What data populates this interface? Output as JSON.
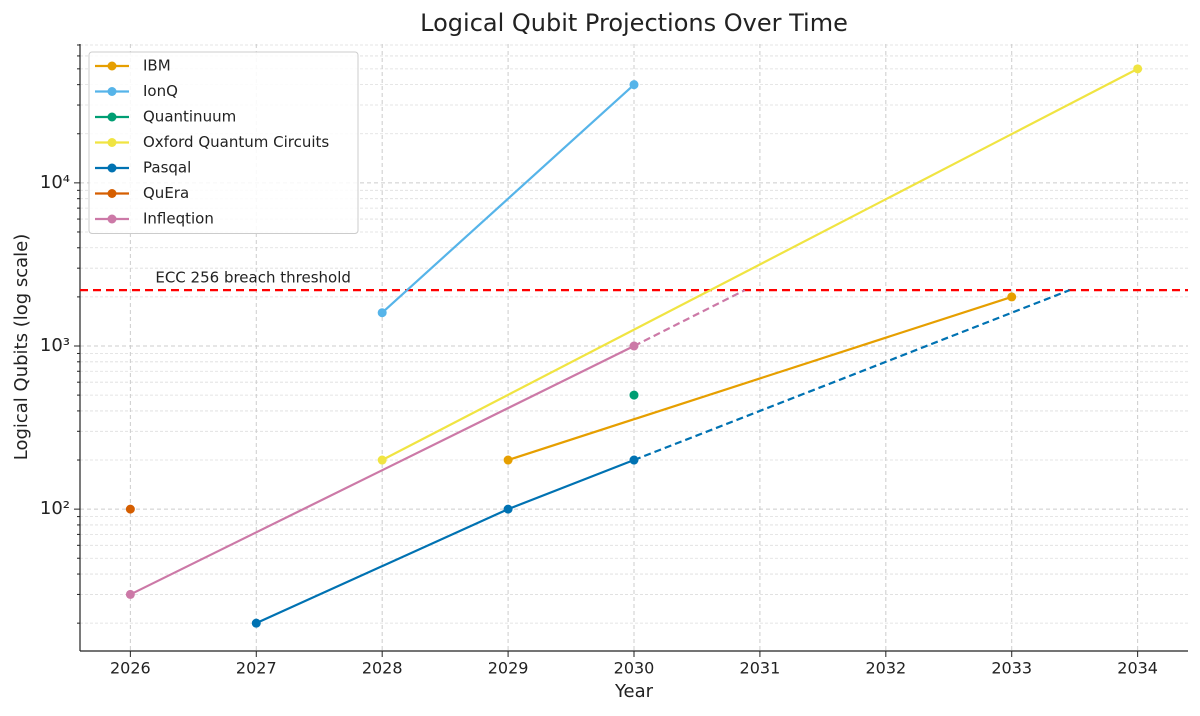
{
  "chart_data": {
    "type": "line",
    "title": "Logical Qubit Projections Over Time",
    "x_label": "Year",
    "y_label": "Logical Qubits (log scale)",
    "log_y": true,
    "grid": true,
    "minor_grid": true,
    "legend": "upper left",
    "xlim": [
      2025.6,
      2034.4
    ],
    "xticks": [
      2026,
      2027,
      2028,
      2029,
      2030,
      2031,
      2032,
      2033,
      2034
    ],
    "ylim": [
      13.5,
      71000
    ],
    "yticks": [
      {
        "value": 100,
        "label": "10²"
      },
      {
        "value": 1000,
        "label": "10³"
      },
      {
        "value": 10000,
        "label": "10⁴"
      }
    ],
    "threshold": {
      "value": 2200,
      "label": "ECC 256 breach threshold",
      "color": "#ff0000"
    },
    "series": [
      {
        "name": "IBM",
        "color": "#E69F00",
        "x": [
          2029,
          2033
        ],
        "values": [
          200,
          2000
        ]
      },
      {
        "name": "IonQ",
        "color": "#56B4E9",
        "x": [
          2028,
          2030
        ],
        "values": [
          1600,
          40000
        ]
      },
      {
        "name": "Quantinuum",
        "color": "#009E73",
        "x": [
          2030
        ],
        "values": [
          500
        ]
      },
      {
        "name": "Oxford Quantum Circuits",
        "color": "#F0E442",
        "x": [
          2028,
          2034
        ],
        "values": [
          200,
          50000
        ]
      },
      {
        "name": "Pasqal",
        "color": "#0072B2",
        "x": [
          2027,
          2029,
          2030
        ],
        "values": [
          20,
          100,
          200
        ],
        "projection": {
          "x": [
            2030,
            2033.46
          ],
          "values": [
            200,
            2200
          ]
        }
      },
      {
        "name": "QuEra",
        "color": "#D55E00",
        "x": [
          2026
        ],
        "values": [
          100
        ]
      },
      {
        "name": "Infleqtion",
        "color": "#CC79A7",
        "x": [
          2026,
          2030
        ],
        "values": [
          30,
          1000
        ],
        "projection": {
          "x": [
            2030,
            2030.88
          ],
          "values": [
            1000,
            2200
          ]
        }
      }
    ]
  }
}
